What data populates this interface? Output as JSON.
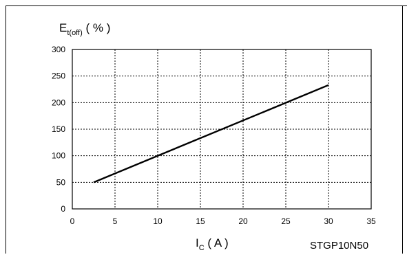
{
  "chart_data": {
    "type": "line",
    "ylabel": {
      "main": "E",
      "sub": "t(off)",
      "unit": " ( % )"
    },
    "xlabel": {
      "main": "I",
      "sub": "C",
      "unit": " ( A )"
    },
    "part_number": "STGP10N50",
    "xlim": [
      0,
      35
    ],
    "ylim": [
      0,
      300
    ],
    "x_ticks": [
      "0",
      "5",
      "10",
      "15",
      "20",
      "25",
      "30",
      "35"
    ],
    "y_ticks": [
      "0",
      "50",
      "100",
      "150",
      "200",
      "250",
      "300"
    ],
    "grid": true,
    "series": [
      {
        "x": [
          2.5,
          30
        ],
        "y": [
          50,
          233
        ],
        "color": "#000000"
      }
    ]
  }
}
